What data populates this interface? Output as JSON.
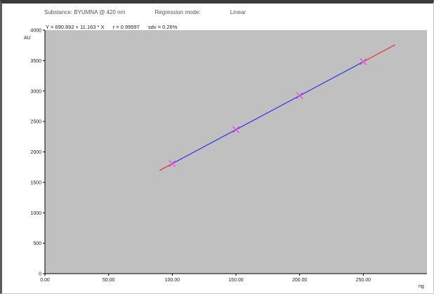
{
  "header": {
    "substance": "Substance: BYUMNA @ 420 nm",
    "regression": "Regression mode:",
    "regression_value": "Linear"
  },
  "equation": {
    "formula": "Y = 690.892 + 11.163 * X",
    "r": "r = 0.99997",
    "sdv": "sdv = 0.26%"
  },
  "chart_data": {
    "type": "scatter",
    "xlabel": "ng",
    "ylabel": "AU",
    "xlim": [
      0,
      300
    ],
    "ylim": [
      0,
      4000
    ],
    "x_ticks": [
      "0.00",
      "50.00",
      "100.00",
      "150.00",
      "200.00",
      "250.00"
    ],
    "x_tick_values": [
      0,
      50,
      100,
      150,
      200,
      250
    ],
    "y_ticks": [
      "0",
      "500",
      "1000",
      "1500",
      "2000",
      "2500",
      "3000",
      "3500",
      "4000"
    ],
    "y_tick_values": [
      0,
      500,
      1000,
      1500,
      2000,
      2500,
      3000,
      3500,
      4000
    ],
    "points": [
      {
        "x": 100,
        "y": 1807
      },
      {
        "x": 150,
        "y": 2365
      },
      {
        "x": 200,
        "y": 2924
      },
      {
        "x": 250,
        "y": 3482
      }
    ],
    "fit": {
      "intercept": 690.892,
      "slope": 11.163,
      "extrapolated_range": [
        90,
        275
      ],
      "calibrated_range": [
        100,
        250
      ]
    },
    "colors": {
      "plot_background": "#c0c0c0",
      "fit_line": "#3333ee",
      "extrapolation_line": "#e03030",
      "points": "#e040e0"
    },
    "grid": false
  }
}
